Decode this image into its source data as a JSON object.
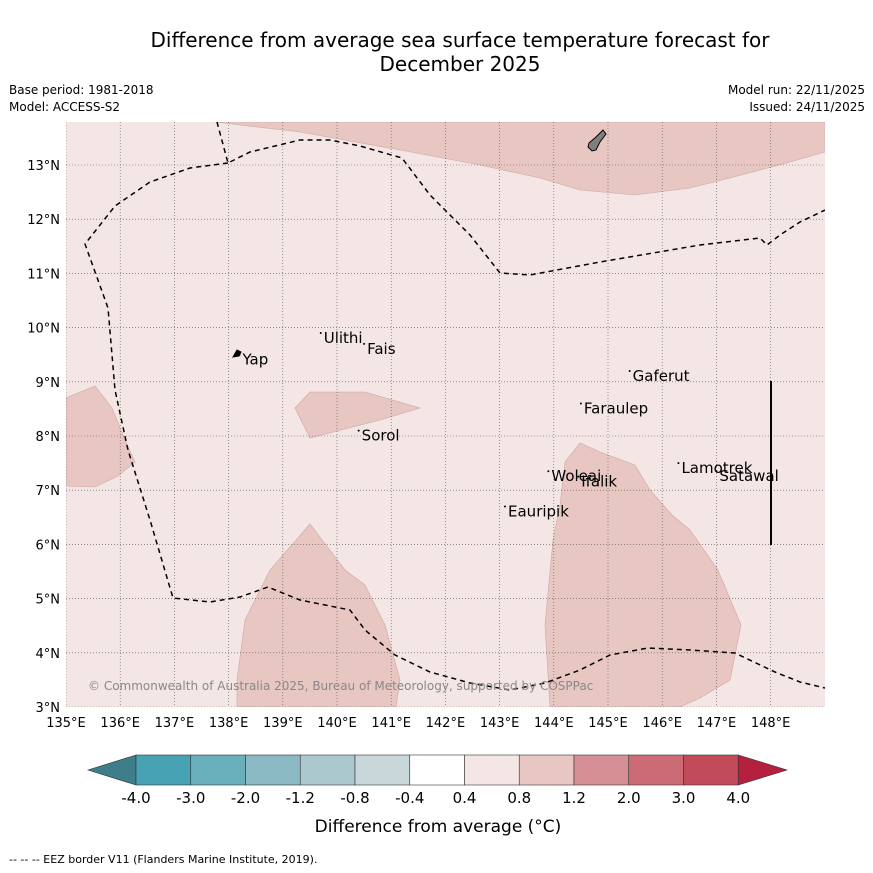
{
  "title": {
    "line1": "Difference from average sea surface temperature forecast for",
    "line2": "December 2025"
  },
  "meta": {
    "base_period": "Base period: 1981-2018",
    "model": "Model: ACCESS-S2",
    "model_run": "Model run: 22/11/2025",
    "issued": "Issued: 24/11/2025"
  },
  "map": {
    "lon_ticks": [
      "135°E",
      "136°E",
      "137°E",
      "138°E",
      "139°E",
      "140°E",
      "141°E",
      "142°E",
      "143°E",
      "144°E",
      "145°E",
      "146°E",
      "147°E",
      "148°E"
    ],
    "lat_ticks": [
      "3°N",
      "4°N",
      "5°N",
      "6°N",
      "7°N",
      "8°N",
      "9°N",
      "10°N",
      "11°N",
      "12°N",
      "13°N"
    ],
    "places": [
      {
        "name": "Yap",
        "lon": 138.2,
        "lat": 9.5
      },
      {
        "name": "Ulithi",
        "lon": 139.7,
        "lat": 9.9
      },
      {
        "name": "Fais",
        "lon": 140.5,
        "lat": 9.7
      },
      {
        "name": "Sorol",
        "lon": 140.4,
        "lat": 8.1
      },
      {
        "name": "Gaferut",
        "lon": 145.4,
        "lat": 9.2
      },
      {
        "name": "Faraulep",
        "lon": 144.5,
        "lat": 8.6
      },
      {
        "name": "Woleai",
        "lon": 143.9,
        "lat": 7.35
      },
      {
        "name": "Ifalik",
        "lon": 144.45,
        "lat": 7.25
      },
      {
        "name": "Lamotrek",
        "lon": 146.3,
        "lat": 7.5
      },
      {
        "name": "Satawal",
        "lon": 147.0,
        "lat": 7.35
      },
      {
        "name": "Eauripik",
        "lon": 143.1,
        "lat": 6.7
      }
    ],
    "copyright": "© Commonwealth of Australia 2025, Bureau of Meteorology, supported by COSPPac"
  },
  "legend": {
    "title": "Difference from average (°C)",
    "labels": [
      "-4.0",
      "-3.0",
      "-2.0",
      "-1.2",
      "-0.8",
      "-0.4",
      "0.4",
      "0.8",
      "1.2",
      "2.0",
      "3.0",
      "4.0"
    ],
    "colors": [
      "#3d7e8a",
      "#47a2b3",
      "#69afbc",
      "#8bb9c4",
      "#acc8cf",
      "#c9d6da",
      "#ffffff",
      "#f4e6e5",
      "#e8c7c3",
      "#d78f96",
      "#cc6a75",
      "#c24b5a",
      "#b4203d"
    ]
  },
  "colors": {
    "background_anomaly": "#f4e6e5",
    "warm_anomaly": "#e8c7c3",
    "land": "#7f7f7f"
  },
  "footer": "--  --  -- EEZ border V11 (Flanders Marine Institute, 2019)."
}
